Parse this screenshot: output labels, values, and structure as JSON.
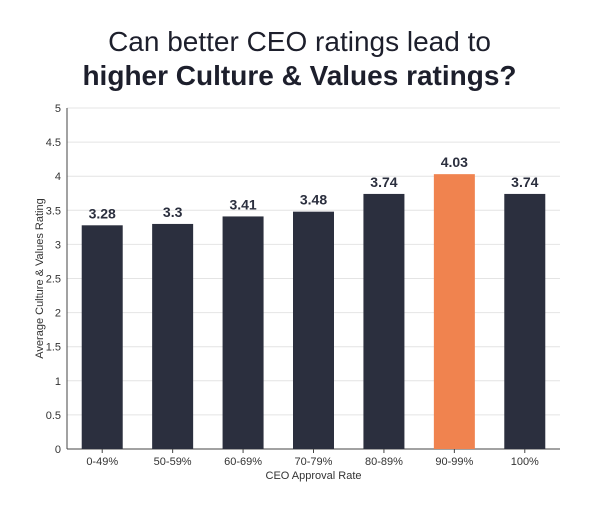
{
  "title_line_1": "Can better CEO ratings lead to",
  "title_line_2": "higher Culture & Values ratings?",
  "chart_data": {
    "type": "bar",
    "categories": [
      "0-49%",
      "50-59%",
      "60-69%",
      "70-79%",
      "80-89%",
      "90-99%",
      "100%"
    ],
    "values": [
      3.28,
      3.3,
      3.41,
      3.48,
      3.74,
      4.03,
      3.74
    ],
    "data_labels": [
      "3.28",
      "3.3",
      "3.41",
      "3.48",
      "3.74",
      "4.03",
      "3.74"
    ],
    "xlabel": "CEO Approval Rate",
    "ylabel": "Average Culture & Values Rating",
    "ylim": [
      0,
      5
    ],
    "yticks": [
      "0",
      "0.5",
      "1",
      "1.5",
      "2",
      "2.5",
      "3",
      "3.5",
      "4",
      "4.5",
      "5"
    ],
    "grid": true,
    "bar_color": "#2b2f3e",
    "highlight_color": "#f0834f",
    "highlight_category": "90-99%"
  }
}
